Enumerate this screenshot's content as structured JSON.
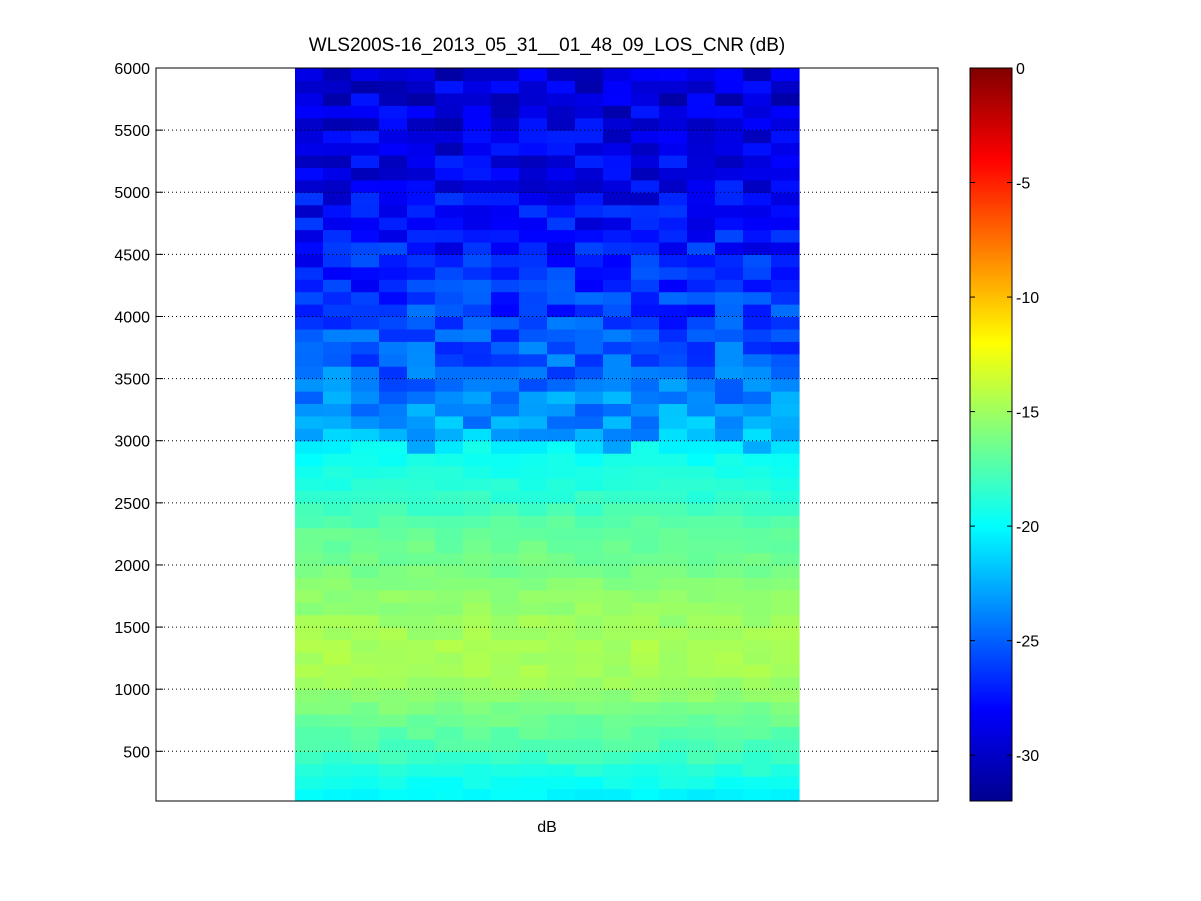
{
  "chart_data": {
    "type": "heatmap",
    "title": "WLS200S-16_2013_05_31__01_48_09_LOS_CNR (dB)",
    "xlabel": "dB",
    "ylabel": "",
    "ylim": [
      100,
      6000
    ],
    "y_ticks": [
      "500",
      "1000",
      "1500",
      "2000",
      "2500",
      "3000",
      "3500",
      "4000",
      "4500",
      "5000",
      "5500",
      "6000"
    ],
    "y_tick_values": [
      500,
      1000,
      1500,
      2000,
      2500,
      3000,
      3500,
      4000,
      4500,
      5000,
      5500,
      6000
    ],
    "grid": "y-dotted",
    "columns": 18,
    "rows": 59,
    "row_step": 100,
    "row_range": [
      100,
      6000
    ],
    "transition_range": 2900,
    "colormap": "jet",
    "colorbar": {
      "range": [
        -32,
        0
      ],
      "ticks": [
        "0",
        "-5",
        "-10",
        "-15",
        "-20",
        "-25",
        "-30"
      ],
      "tick_values": [
        0,
        -5,
        -10,
        -15,
        -20,
        -25,
        -30
      ]
    },
    "profile": [
      {
        "range": 100,
        "value": -20.5
      },
      {
        "range": 300,
        "value": -19.2
      },
      {
        "range": 500,
        "value": -17.8
      },
      {
        "range": 800,
        "value": -16.4
      },
      {
        "range": 1000,
        "value": -15.2
      },
      {
        "range": 1300,
        "value": -14.6
      },
      {
        "range": 1600,
        "value": -15.2
      },
      {
        "range": 2000,
        "value": -16.3
      },
      {
        "range": 2300,
        "value": -17.0
      },
      {
        "range": 2500,
        "value": -18.3
      },
      {
        "range": 2900,
        "value": -19.8
      },
      {
        "range": 3000,
        "value": -22.4
      },
      {
        "range": 3300,
        "value": -23.6
      },
      {
        "range": 3600,
        "value": -24.8
      },
      {
        "range": 4000,
        "value": -26.0
      },
      {
        "range": 4500,
        "value": -27.2
      },
      {
        "range": 5000,
        "value": -28.2
      },
      {
        "range": 5500,
        "value": -28.8
      },
      {
        "range": 6000,
        "value": -29.2
      }
    ]
  }
}
